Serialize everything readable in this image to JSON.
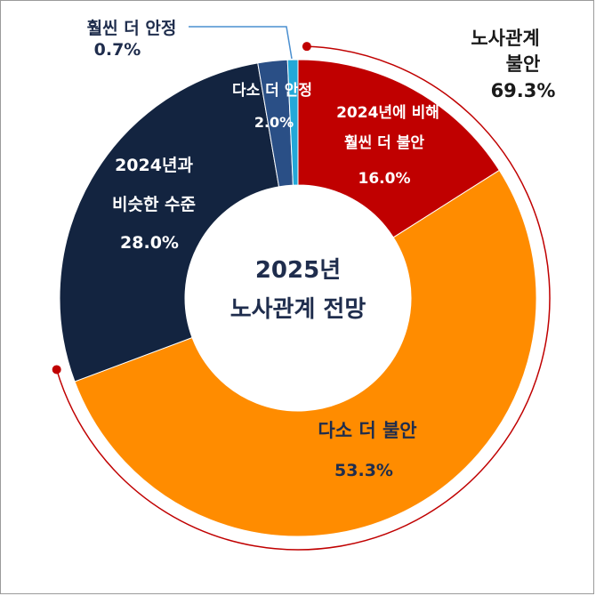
{
  "chart_data": {
    "type": "donut",
    "title_lines": [
      "2025년",
      "노사관계 전망"
    ],
    "start_angle_deg": 0,
    "direction": "clockwise",
    "slices": [
      {
        "key": "much_more_unstable",
        "label_lines": [
          "2024년에 비해",
          "훨씬 더 불안"
        ],
        "value": 16.0,
        "value_label": "16.0%",
        "color": "#c00000",
        "label_color": "#ffffff"
      },
      {
        "key": "more_unstable",
        "label_lines": [
          "다소 더 불안"
        ],
        "value": 53.3,
        "value_label": "53.3%",
        "color": "#ff8c00",
        "label_color": "#1f2d4d"
      },
      {
        "key": "similar",
        "label_lines": [
          "2024년과",
          "비슷한 수준"
        ],
        "value": 28.0,
        "value_label": "28.0%",
        "color": "#132440",
        "label_color": "#ffffff"
      },
      {
        "key": "more_stable",
        "label_lines": [
          "다소 더 안정"
        ],
        "value": 2.0,
        "value_label": "2.0%",
        "color": "#2a4f86",
        "label_color": "#ffffff"
      },
      {
        "key": "much_more_stable",
        "label_lines": [
          "훨씬 더 안정"
        ],
        "value": 0.7,
        "value_label": "0.7%",
        "color": "#23a8d8",
        "label_color": "#1f2d4d"
      }
    ],
    "group_annotation": {
      "label_lines": [
        "노사관계",
        "불안"
      ],
      "value_label": "69.3%",
      "color": "#c00000",
      "spans": [
        "much_more_unstable",
        "more_unstable"
      ]
    },
    "callout_line_color": "#4a8fd0"
  }
}
